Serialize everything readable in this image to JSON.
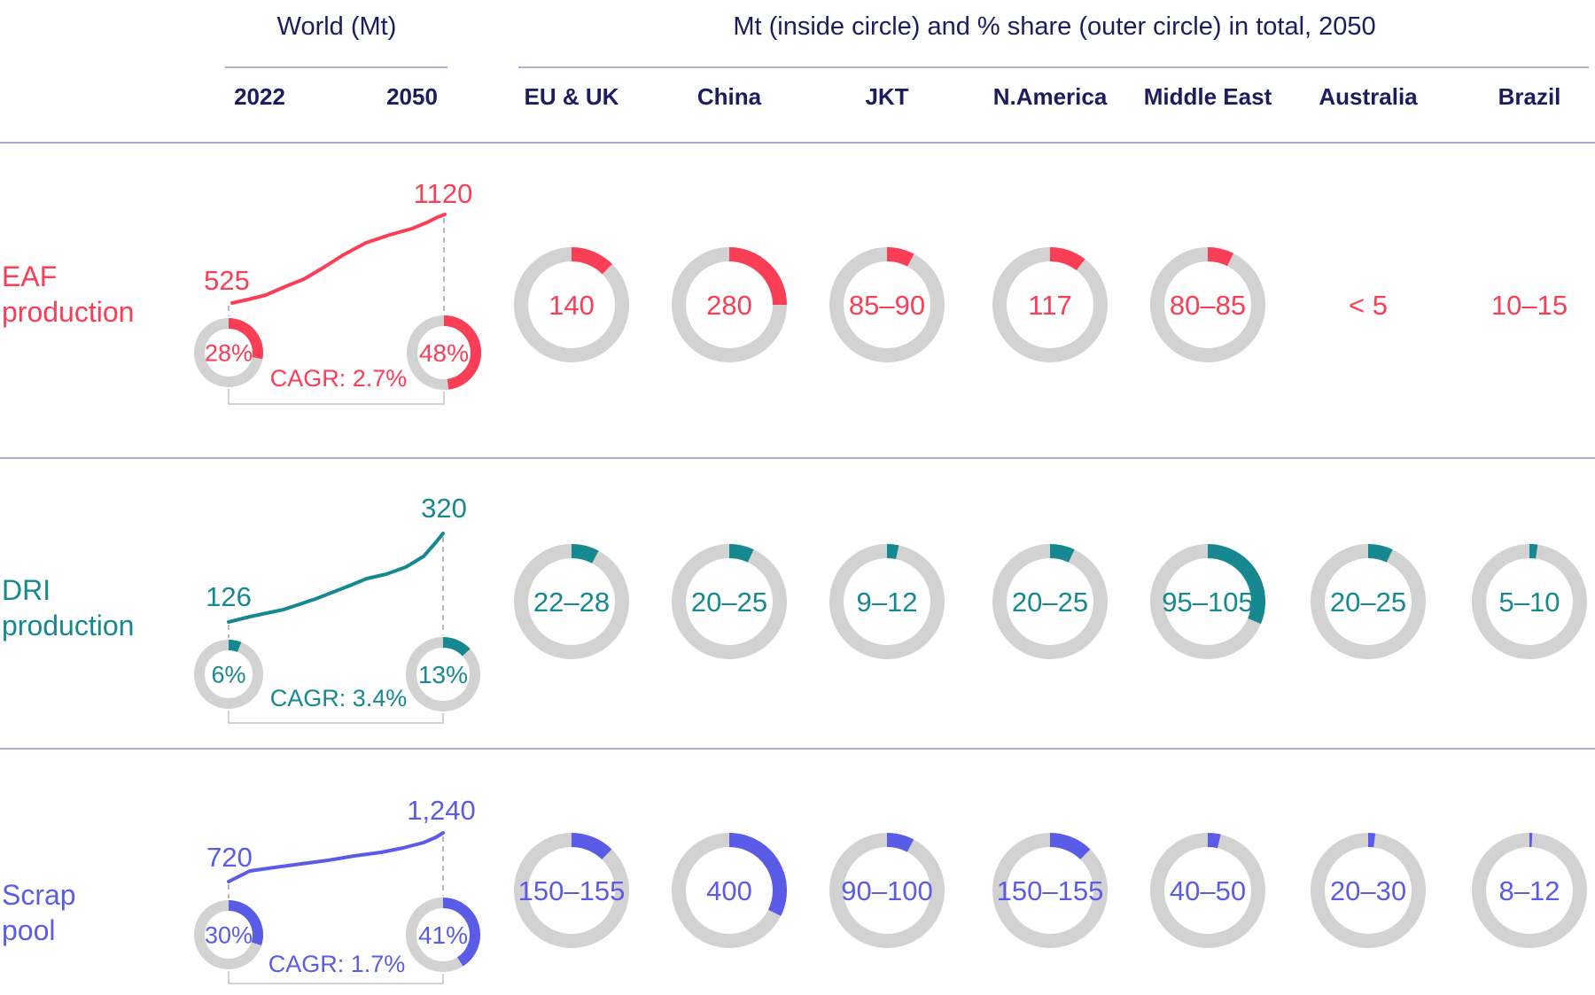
{
  "header": {
    "world_title": "World (Mt)",
    "world_years": [
      "2022",
      "2050"
    ],
    "regions_title": "Mt (inside circle) and % share (outer circle) in total, 2050",
    "regions": [
      "EU & UK",
      "China",
      "JKT",
      "N.America",
      "Middle East",
      "Australia",
      "Brazil"
    ]
  },
  "colors": {
    "eaf": "#fa3e56",
    "dri": "#15898f",
    "scrap": "#5a5ce8",
    "navy": "#1c1c5e",
    "ring_gray": "#d2d2d2",
    "bracket_gray": "#c4c4c4",
    "dash_gray": "#a9a9a9",
    "divider": "#abacce"
  },
  "chart_data": {
    "type": "donut-grid",
    "unit": "Mt",
    "share_note": "% share (outer circle) in total, 2050",
    "rows": [
      {
        "id": "eaf",
        "label_lines": [
          "EAF",
          "production"
        ],
        "color": "#fa3e56",
        "world": {
          "value_2022": 525,
          "value_2050": 1120,
          "label_2022": "525",
          "label_2050": "1120",
          "share_2022_pct": 28,
          "share_2050_pct": 48,
          "share_2022_label": "28%",
          "share_2050_label": "48%",
          "cagr_label": "CAGR: 2.7%",
          "trend": [
            [
              262,
              342
            ],
            [
              280,
              338
            ],
            [
              300,
              333
            ],
            [
              323,
              323
            ],
            [
              343,
              315
            ],
            [
              365,
              302
            ],
            [
              387,
              288
            ],
            [
              413,
              274
            ],
            [
              440,
              265
            ],
            [
              465,
              258
            ],
            [
              482,
              251
            ],
            [
              494,
              245
            ],
            [
              502,
              242
            ]
          ]
        },
        "regions": [
          {
            "name": "EU & UK",
            "value_label": "140",
            "share_pct": 12.5,
            "circle": true
          },
          {
            "name": "China",
            "value_label": "280",
            "share_pct": 25.0,
            "circle": true
          },
          {
            "name": "JKT",
            "value_label": "85–90",
            "share_pct": 7.8,
            "circle": true
          },
          {
            "name": "N.America",
            "value_label": "117",
            "share_pct": 10.4,
            "circle": true
          },
          {
            "name": "Middle East",
            "value_label": "80–85",
            "share_pct": 7.4,
            "circle": true
          },
          {
            "name": "Australia",
            "value_label": "< 5",
            "share_pct": null,
            "circle": false
          },
          {
            "name": "Brazil",
            "value_label": "10–15",
            "share_pct": null,
            "circle": false
          }
        ]
      },
      {
        "id": "dri",
        "label_lines": [
          "DRI",
          "production"
        ],
        "color": "#15898f",
        "world": {
          "value_2022": 126,
          "value_2050": 320,
          "label_2022": "126",
          "label_2050": "320",
          "share_2022_pct": 6,
          "share_2050_pct": 13,
          "share_2022_label": "6%",
          "share_2050_label": "13%",
          "cagr_label": "CAGR: 3.4%",
          "trend": [
            [
              258,
              702
            ],
            [
              282,
              696
            ],
            [
              320,
              688
            ],
            [
              356,
              676
            ],
            [
              392,
              662
            ],
            [
              414,
              653
            ],
            [
              436,
              648
            ],
            [
              458,
              640
            ],
            [
              478,
              628
            ],
            [
              492,
              612
            ],
            [
              500,
              602
            ]
          ]
        },
        "regions": [
          {
            "name": "EU & UK",
            "value_label": "22–28",
            "share_pct": 7.8,
            "circle": true
          },
          {
            "name": "China",
            "value_label": "20–25",
            "share_pct": 7.0,
            "circle": true
          },
          {
            "name": "JKT",
            "value_label": "9–12",
            "share_pct": 3.3,
            "circle": true
          },
          {
            "name": "N.America",
            "value_label": "20–25",
            "share_pct": 7.0,
            "circle": true
          },
          {
            "name": "Middle East",
            "value_label": "95–105",
            "share_pct": 31.3,
            "circle": true
          },
          {
            "name": "Australia",
            "value_label": "20–25",
            "share_pct": 7.0,
            "circle": true
          },
          {
            "name": "Brazil",
            "value_label": "5–10",
            "share_pct": 2.3,
            "circle": true
          }
        ]
      },
      {
        "id": "scrap",
        "label_lines": [
          "Scrap",
          "pool"
        ],
        "color": "#5a5ce8",
        "world": {
          "value_2022": 720,
          "value_2050": 1240,
          "label_2022": "720",
          "label_2050": "1,240",
          "share_2022_pct": 30,
          "share_2050_pct": 41,
          "share_2022_label": "30%",
          "share_2050_label": "41%",
          "cagr_label": "CAGR: 1.7%",
          "trend": [
            [
              258,
              995
            ],
            [
              282,
              983
            ],
            [
              310,
              979
            ],
            [
              340,
              975
            ],
            [
              370,
              971
            ],
            [
              400,
              966
            ],
            [
              430,
              962
            ],
            [
              455,
              957
            ],
            [
              478,
              951
            ],
            [
              492,
              945
            ],
            [
              500,
              940
            ]
          ]
        },
        "regions": [
          {
            "name": "EU & UK",
            "value_label": "150–155",
            "share_pct": 12.3,
            "circle": true
          },
          {
            "name": "China",
            "value_label": "400",
            "share_pct": 32.3,
            "circle": true
          },
          {
            "name": "JKT",
            "value_label": "90–100",
            "share_pct": 7.7,
            "circle": true
          },
          {
            "name": "N.America",
            "value_label": "150–155",
            "share_pct": 12.3,
            "circle": true
          },
          {
            "name": "Middle East",
            "value_label": "40–50",
            "share_pct": 3.6,
            "circle": true
          },
          {
            "name": "Australia",
            "value_label": "20–30",
            "share_pct": 2.0,
            "circle": true
          },
          {
            "name": "Brazil",
            "value_label": "8–12",
            "share_pct": 0.8,
            "circle": true
          }
        ]
      }
    ]
  }
}
